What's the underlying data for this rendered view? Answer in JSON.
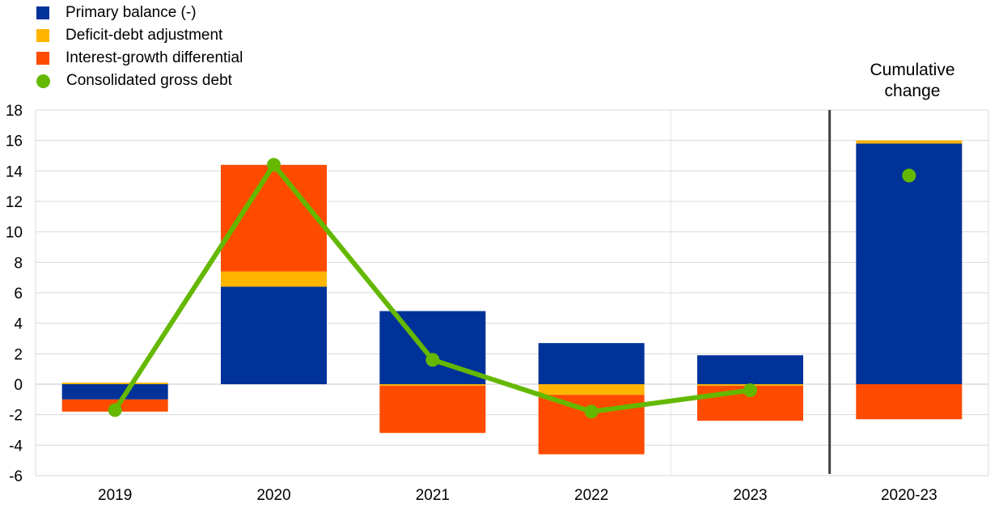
{
  "legend": [
    {
      "label": "Primary balance (-)",
      "color": "#003299",
      "shape": "square"
    },
    {
      "label": "Deficit-debt adjustment",
      "color": "#ffb400",
      "shape": "square"
    },
    {
      "label": "Interest-growth differential",
      "color": "#ff4b00",
      "shape": "square"
    },
    {
      "label": "Consolidated gross debt",
      "color": "#65b800",
      "shape": "circle"
    }
  ],
  "annotation": {
    "line1": "Cumulative",
    "line2": "change"
  },
  "chart_data": {
    "type": "bar",
    "stacked": true,
    "categories": [
      "2019",
      "2020",
      "2021",
      "2022",
      "2023",
      "2020-23"
    ],
    "ylim": [
      -6,
      18
    ],
    "yticks": [
      -6,
      -4,
      -2,
      0,
      2,
      4,
      6,
      8,
      10,
      12,
      14,
      16,
      18
    ],
    "grid": true,
    "legend_position": "top-left",
    "series": [
      {
        "name": "Primary balance (-)",
        "color": "#003299",
        "values": [
          -1.0,
          6.4,
          4.8,
          2.7,
          1.9,
          15.8
        ]
      },
      {
        "name": "Deficit-debt adjustment",
        "color": "#ffb400",
        "values": [
          0.1,
          1.0,
          -0.1,
          -0.7,
          -0.1,
          0.2
        ]
      },
      {
        "name": "Interest-growth differential",
        "color": "#ff4b00",
        "values": [
          -0.8,
          7.0,
          -3.1,
          -3.9,
          -2.3,
          -2.3
        ]
      }
    ],
    "line": {
      "name": "Consolidated gross debt",
      "color": "#65b800",
      "values": [
        -1.7,
        14.4,
        1.6,
        -1.8,
        -0.4,
        13.7
      ],
      "connected_through": 4
    }
  }
}
